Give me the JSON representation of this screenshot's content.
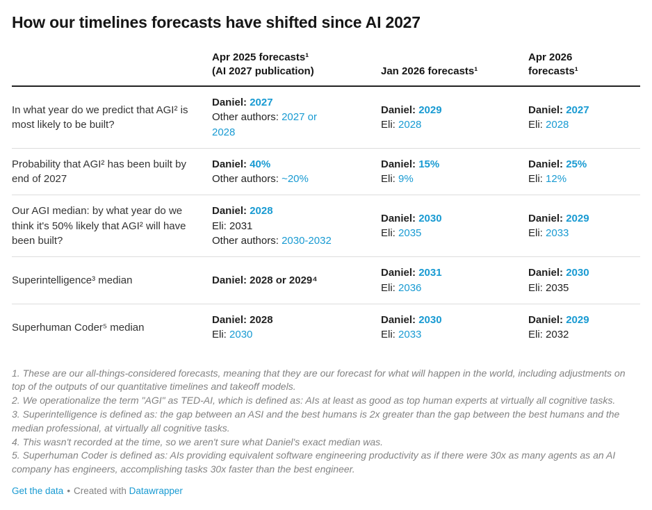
{
  "colors": {
    "accent": "#189ad2",
    "title": "#161616",
    "text": "#222222",
    "question": "#333333",
    "muted": "#828282",
    "rule": "#dcdcdc",
    "header_rule": "#222222"
  },
  "chart_data": {
    "type": "table",
    "title": "How our timelines forecasts have shifted since AI 2027",
    "columns": [
      {
        "lines": [
          "Apr 2025 forecasts¹",
          "(AI 2027 publication)"
        ]
      },
      {
        "lines": [
          "Jan 2026 forecasts¹"
        ]
      },
      {
        "lines": [
          "Apr 2026",
          "forecasts¹"
        ]
      }
    ],
    "rows": [
      {
        "question": "In what year do we predict that AGI² is most likely to be built?",
        "cells": [
          {
            "lines": [
              [
                {
                  "t": "Daniel: ",
                  "b": true
                },
                {
                  "t": "2027",
                  "b": true,
                  "c": "accent"
                }
              ],
              [
                {
                  "t": "Other authors: "
                },
                {
                  "t": "2027 or",
                  "c": "accent"
                }
              ],
              [
                {
                  "t": "2028",
                  "c": "accent"
                }
              ]
            ]
          },
          {
            "lines": [
              [
                {
                  "t": "Daniel: ",
                  "b": true
                },
                {
                  "t": "2029",
                  "b": true,
                  "c": "accent"
                }
              ],
              [
                {
                  "t": "Eli: "
                },
                {
                  "t": "2028",
                  "c": "accent"
                }
              ]
            ]
          },
          {
            "lines": [
              [
                {
                  "t": "Daniel: ",
                  "b": true
                },
                {
                  "t": "2027",
                  "b": true,
                  "c": "accent"
                }
              ],
              [
                {
                  "t": "Eli: "
                },
                {
                  "t": "2028",
                  "c": "accent"
                }
              ]
            ]
          }
        ]
      },
      {
        "question": "Probability that AGI² has been built by end of 2027",
        "cells": [
          {
            "lines": [
              [
                {
                  "t": "Daniel: ",
                  "b": true
                },
                {
                  "t": "40%",
                  "b": true,
                  "c": "accent"
                }
              ],
              [
                {
                  "t": "Other authors: "
                },
                {
                  "t": "~20%",
                  "c": "accent"
                }
              ]
            ]
          },
          {
            "lines": [
              [
                {
                  "t": "Daniel: ",
                  "b": true
                },
                {
                  "t": "15%",
                  "b": true,
                  "c": "accent"
                }
              ],
              [
                {
                  "t": "Eli: "
                },
                {
                  "t": "9%",
                  "c": "accent"
                }
              ]
            ]
          },
          {
            "lines": [
              [
                {
                  "t": "Daniel: ",
                  "b": true
                },
                {
                  "t": "25%",
                  "b": true,
                  "c": "accent"
                }
              ],
              [
                {
                  "t": "Eli: "
                },
                {
                  "t": "12%",
                  "c": "accent"
                }
              ]
            ]
          }
        ]
      },
      {
        "question": "Our AGI median: by what year do we think it's 50% likely that AGI² will have been built?",
        "cells": [
          {
            "lines": [
              [
                {
                  "t": "Daniel: ",
                  "b": true
                },
                {
                  "t": "2028",
                  "b": true,
                  "c": "accent"
                }
              ],
              [
                {
                  "t": "Eli: 2031"
                }
              ],
              [
                {
                  "t": "Other authors: "
                },
                {
                  "t": "2030-2032",
                  "c": "accent"
                }
              ]
            ]
          },
          {
            "lines": [
              [
                {
                  "t": "Daniel: ",
                  "b": true
                },
                {
                  "t": "2030",
                  "b": true,
                  "c": "accent"
                }
              ],
              [
                {
                  "t": "Eli: "
                },
                {
                  "t": "2035",
                  "c": "accent"
                }
              ]
            ]
          },
          {
            "lines": [
              [
                {
                  "t": "Daniel: ",
                  "b": true
                },
                {
                  "t": "2029",
                  "b": true,
                  "c": "accent"
                }
              ],
              [
                {
                  "t": "Eli: "
                },
                {
                  "t": "2033",
                  "c": "accent"
                }
              ]
            ]
          }
        ]
      },
      {
        "question": "Superintelligence³ median",
        "cells": [
          {
            "lines": [
              [
                {
                  "t": "Daniel: 2028 or 2029⁴",
                  "b": true
                }
              ]
            ]
          },
          {
            "lines": [
              [
                {
                  "t": "Daniel: ",
                  "b": true
                },
                {
                  "t": "2031",
                  "b": true,
                  "c": "accent"
                }
              ],
              [
                {
                  "t": "Eli: "
                },
                {
                  "t": "2036",
                  "c": "accent"
                }
              ]
            ]
          },
          {
            "lines": [
              [
                {
                  "t": "Daniel: ",
                  "b": true
                },
                {
                  "t": "2030",
                  "b": true,
                  "c": "accent"
                }
              ],
              [
                {
                  "t": "Eli: 2035"
                }
              ]
            ]
          }
        ]
      },
      {
        "question": "Superhuman Coder⁵ median",
        "cells": [
          {
            "lines": [
              [
                {
                  "t": "Daniel: 2028",
                  "b": true
                }
              ],
              [
                {
                  "t": "Eli: "
                },
                {
                  "t": "2030",
                  "c": "accent"
                }
              ]
            ]
          },
          {
            "lines": [
              [
                {
                  "t": "Daniel: ",
                  "b": true
                },
                {
                  "t": "2030",
                  "b": true,
                  "c": "accent"
                }
              ],
              [
                {
                  "t": "Eli: "
                },
                {
                  "t": "2033",
                  "c": "accent"
                }
              ]
            ]
          },
          {
            "lines": [
              [
                {
                  "t": "Daniel: ",
                  "b": true
                },
                {
                  "t": "2029",
                  "b": true,
                  "c": "accent"
                }
              ],
              [
                {
                  "t": "Eli: 2032"
                }
              ]
            ]
          }
        ]
      }
    ],
    "footnotes": [
      "1. These are our all-things-considered forecasts, meaning that they are our forecast for what will happen in the world, including adjustments on top of the outputs of our quantitative timelines and takeoff models.",
      "2. We operationalize the term \"AGI\" as TED-AI, which is defined as: AIs at least as good as top human experts at virtually all cognitive tasks.",
      "3. Superintelligence is defined as: the gap between an ASI and the best humans is 2x greater than the gap between the best humans and the median professional, at virtually all cognitive tasks.",
      "4. This wasn't recorded at the time, so we aren't sure what Daniel's exact median was.",
      "5. Superhuman Coder is defined as: AIs providing equivalent software engineering productivity as if there were 30x as many agents as an AI company has engineers, accomplishing tasks 30x faster than the best engineer."
    ]
  },
  "footer": {
    "get_data": "Get the data",
    "separator": "•",
    "credit": "Created with",
    "brand": "Datawrapper"
  }
}
